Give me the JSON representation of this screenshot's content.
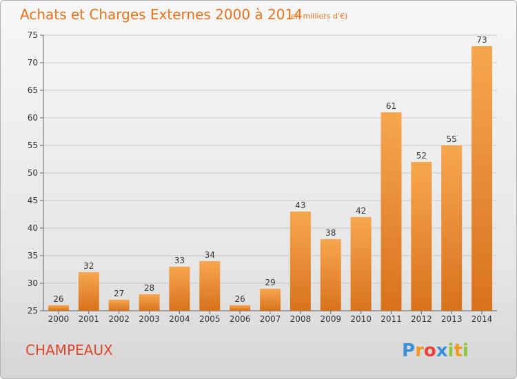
{
  "title": "Achats et Charges Externes 2000 à 2014",
  "subtitle": "(en milliers d'€)",
  "location": "CHAMPEAUX",
  "brand": {
    "letters": [
      "P",
      "r",
      "o",
      "x",
      "i",
      "t",
      "i"
    ],
    "colors": [
      "#3a8fd6",
      "#f39a1e",
      "#e8413c",
      "#3a8fd6",
      "#8cc63e",
      "#f39a1e",
      "#8cc63e"
    ]
  },
  "colors": {
    "accent": "#e8731e",
    "bar_light": "#f7a650",
    "bar_dark": "#d8721c"
  },
  "chart_data": {
    "type": "bar",
    "title": "Achats et Charges Externes 2000 à 2014",
    "subtitle": "(en milliers d'€)",
    "categories": [
      "2000",
      "2001",
      "2002",
      "2003",
      "2004",
      "2005",
      "2006",
      "2007",
      "2008",
      "2009",
      "2010",
      "2011",
      "2012",
      "2013",
      "2014"
    ],
    "values": [
      26,
      32,
      27,
      28,
      33,
      34,
      26,
      29,
      43,
      38,
      42,
      61,
      52,
      55,
      73
    ],
    "xlabel": "",
    "ylabel": "",
    "ylim": [
      25,
      75
    ],
    "yticks": [
      25,
      30,
      35,
      40,
      45,
      50,
      55,
      60,
      65,
      70,
      75
    ],
    "grid": true,
    "legend": "none"
  }
}
